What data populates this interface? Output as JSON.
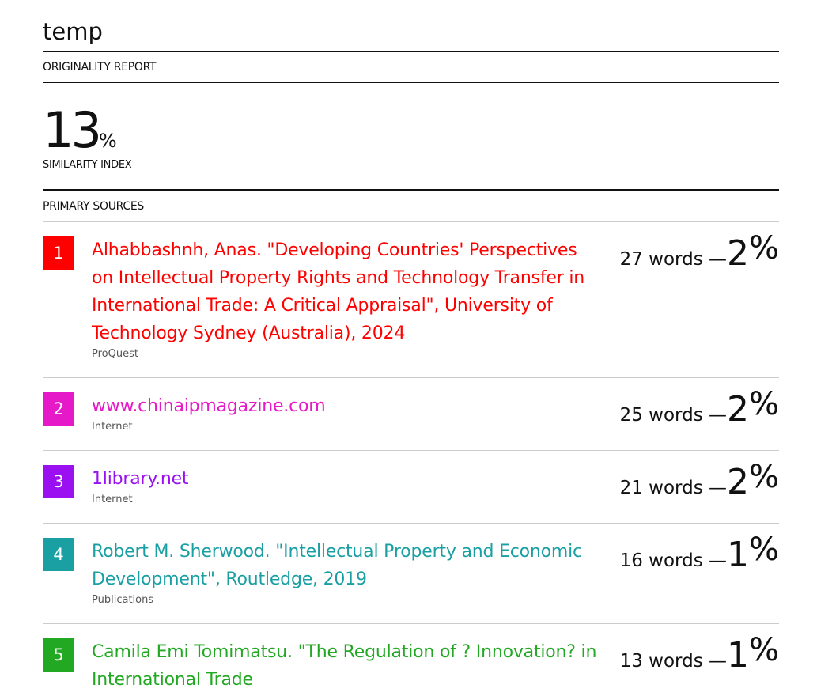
{
  "header": {
    "title": "temp",
    "report_label": "ORIGINALITY REPORT"
  },
  "similarity": {
    "value": 13,
    "sign": "%",
    "label": "SIMILARITY INDEX"
  },
  "sources_label": "PRIMARY SOURCES",
  "sources": [
    {
      "rank": 1,
      "color": "#ff0000",
      "title": "Alhabbashnh, Anas. \"Developing Countries' Perspectives on Intellectual Property Rights and Technology Transfer in International Trade: A Critical Appraisal\", University of Technology Sydney (Australia), 2024",
      "kind": "ProQuest",
      "match": "27 words —",
      "percent": 2,
      "sign": "%"
    },
    {
      "rank": 2,
      "color": "#e619c8",
      "title": "www.chinaipmagazine.com",
      "kind": "Internet",
      "match": "25 words —",
      "percent": 2,
      "sign": "%"
    },
    {
      "rank": 3,
      "color": "#9a10f0",
      "title": "1library.net",
      "kind": "Internet",
      "match": "21 words —",
      "percent": 2,
      "sign": "%"
    },
    {
      "rank": 4,
      "color": "#1a9fa3",
      "title": "Robert M. Sherwood. \"Intellectual Property and Economic Development\", Routledge, 2019",
      "kind": "Publications",
      "match": "16 words —",
      "percent": 1,
      "sign": "%"
    },
    {
      "rank": 5,
      "color": "#22a822",
      "title": "Camila Emi Tomimatsu. \"The Regulation of ? Innovation? in International Trade",
      "kind": "",
      "match": "13 words —",
      "percent": 1,
      "sign": "%"
    }
  ]
}
